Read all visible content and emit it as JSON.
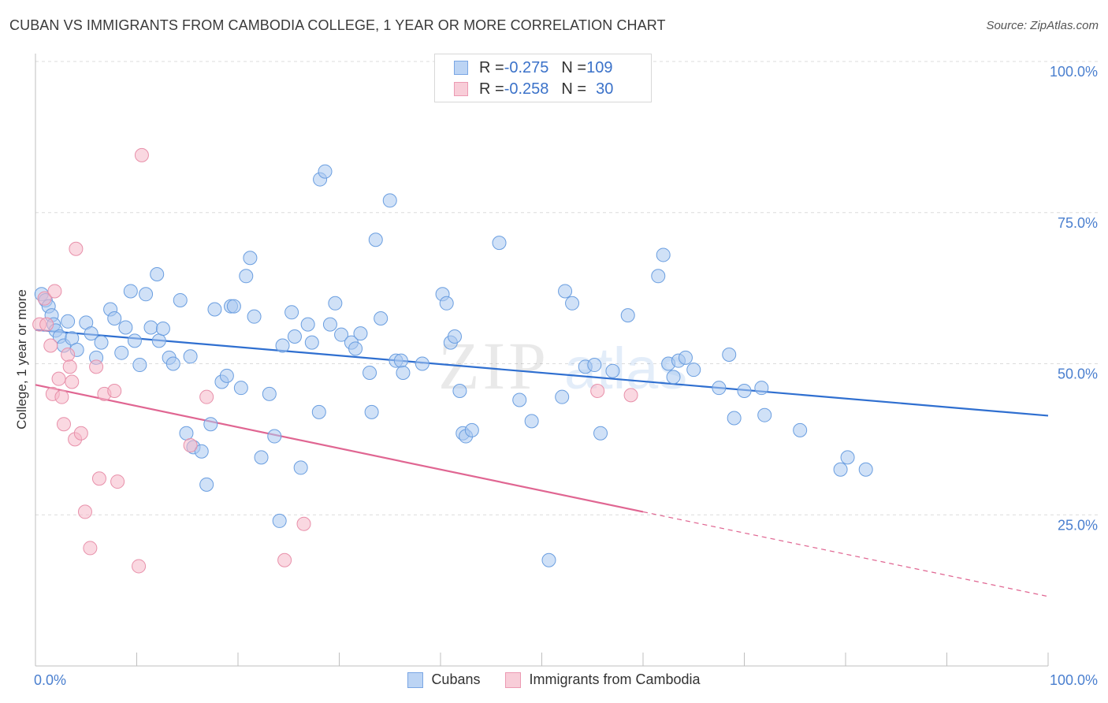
{
  "header": {
    "title": "CUBAN VS IMMIGRANTS FROM CAMBODIA COLLEGE, 1 YEAR OR MORE CORRELATION CHART",
    "source": "Source: ZipAtlas.com"
  },
  "watermark": {
    "main": "ZIP",
    "sub": "atlas"
  },
  "legend": {
    "rows": [
      {
        "r_label": "R = ",
        "r_value": "-0.275",
        "n_label": "N = ",
        "n_value": "109",
        "color": "#a9c8f0"
      },
      {
        "r_label": "R = ",
        "r_value": "-0.258",
        "n_label": "N = ",
        "n_value": "30",
        "color": "#f5b8c8"
      }
    ]
  },
  "bottom_legend": [
    {
      "label": "Cubans",
      "color": "#a9c8f0"
    },
    {
      "label": "Immigrants from Cambodia",
      "color": "#f5b8c8"
    }
  ],
  "chart_data": {
    "type": "scatter",
    "ylabel": "College, 1 year or more",
    "xlim": [
      0,
      100
    ],
    "ylim": [
      0,
      100
    ],
    "x_tick_labels": [
      "0.0%",
      "100.0%"
    ],
    "y_ticks": [
      25,
      50,
      75,
      100
    ],
    "y_tick_labels": [
      "25.0%",
      "50.0%",
      "75.0%",
      "100.0%"
    ],
    "grid": true,
    "series": [
      {
        "name": "Cubans",
        "color": "#a9c8f0",
        "stroke": "#6a9ee0",
        "trend": {
          "x": [
            0,
            100
          ],
          "y": [
            55.6,
            41.4
          ],
          "color": "#2f6fd0"
        },
        "points": [
          [
            0.6,
            61.5
          ],
          [
            1.0,
            60.5
          ],
          [
            1.3,
            59.5
          ],
          [
            1.6,
            58.0
          ],
          [
            1.8,
            56.5
          ],
          [
            2.0,
            55.5
          ],
          [
            2.4,
            54.5
          ],
          [
            2.8,
            53.0
          ],
          [
            3.2,
            57.0
          ],
          [
            3.6,
            54.2
          ],
          [
            4.1,
            52.3
          ],
          [
            5.0,
            56.8
          ],
          [
            5.5,
            55.0
          ],
          [
            6.0,
            51.0
          ],
          [
            6.5,
            53.5
          ],
          [
            7.4,
            59.0
          ],
          [
            7.8,
            57.5
          ],
          [
            8.5,
            51.8
          ],
          [
            8.9,
            56.0
          ],
          [
            9.4,
            62.0
          ],
          [
            9.8,
            53.8
          ],
          [
            10.3,
            49.8
          ],
          [
            10.9,
            61.5
          ],
          [
            11.4,
            56.0
          ],
          [
            12.0,
            64.8
          ],
          [
            12.2,
            53.8
          ],
          [
            12.6,
            55.8
          ],
          [
            13.2,
            51.0
          ],
          [
            13.6,
            50.0
          ],
          [
            14.3,
            60.5
          ],
          [
            14.9,
            38.5
          ],
          [
            15.3,
            51.2
          ],
          [
            15.6,
            36.2
          ],
          [
            16.4,
            35.5
          ],
          [
            16.9,
            30.0
          ],
          [
            17.3,
            40.0
          ],
          [
            17.7,
            59.0
          ],
          [
            18.4,
            47.0
          ],
          [
            18.9,
            48.0
          ],
          [
            19.3,
            59.5
          ],
          [
            19.6,
            59.5
          ],
          [
            20.3,
            46.0
          ],
          [
            20.8,
            64.5
          ],
          [
            21.2,
            67.5
          ],
          [
            21.6,
            57.8
          ],
          [
            22.3,
            34.5
          ],
          [
            23.1,
            45.0
          ],
          [
            23.6,
            38.0
          ],
          [
            24.1,
            24.0
          ],
          [
            24.4,
            53.0
          ],
          [
            25.3,
            58.5
          ],
          [
            25.6,
            54.5
          ],
          [
            26.2,
            32.8
          ],
          [
            26.9,
            56.5
          ],
          [
            27.3,
            53.5
          ],
          [
            28.0,
            42.0
          ],
          [
            28.1,
            80.5
          ],
          [
            28.6,
            81.8
          ],
          [
            29.1,
            56.5
          ],
          [
            29.6,
            60.0
          ],
          [
            30.2,
            54.8
          ],
          [
            31.2,
            53.5
          ],
          [
            31.6,
            52.5
          ],
          [
            32.1,
            55.0
          ],
          [
            33.0,
            48.5
          ],
          [
            33.2,
            42.0
          ],
          [
            33.6,
            70.5
          ],
          [
            34.1,
            57.5
          ],
          [
            35.0,
            77.0
          ],
          [
            35.6,
            50.5
          ],
          [
            36.1,
            50.5
          ],
          [
            36.3,
            48.5
          ],
          [
            38.2,
            50.0
          ],
          [
            40.2,
            61.5
          ],
          [
            40.6,
            60.0
          ],
          [
            41.0,
            53.5
          ],
          [
            41.4,
            54.5
          ],
          [
            41.9,
            45.5
          ],
          [
            42.2,
            38.5
          ],
          [
            42.5,
            38.0
          ],
          [
            43.1,
            39.0
          ],
          [
            45.8,
            70.0
          ],
          [
            47.8,
            44.0
          ],
          [
            49.0,
            40.5
          ],
          [
            50.7,
            17.5
          ],
          [
            52.0,
            44.5
          ],
          [
            52.3,
            62.0
          ],
          [
            53.0,
            60.0
          ],
          [
            54.3,
            49.5
          ],
          [
            55.2,
            49.8
          ],
          [
            55.8,
            38.5
          ],
          [
            57.0,
            48.8
          ],
          [
            58.5,
            58.0
          ],
          [
            61.5,
            64.5
          ],
          [
            62.0,
            68.0
          ],
          [
            62.5,
            50.0
          ],
          [
            63.0,
            47.8
          ],
          [
            63.5,
            50.5
          ],
          [
            64.2,
            51.0
          ],
          [
            65.0,
            49.0
          ],
          [
            67.5,
            46.0
          ],
          [
            68.5,
            51.5
          ],
          [
            69.0,
            41.0
          ],
          [
            70.0,
            45.5
          ],
          [
            71.7,
            46.0
          ],
          [
            72.0,
            41.5
          ],
          [
            75.5,
            39.0
          ],
          [
            79.5,
            32.5
          ],
          [
            80.2,
            34.5
          ],
          [
            82.0,
            32.5
          ]
        ]
      },
      {
        "name": "Immigrants from Cambodia",
        "color": "#f5b8c8",
        "stroke": "#e890aa",
        "trend": {
          "x": [
            0,
            60
          ],
          "y": [
            46.5,
            25.5
          ],
          "color": "#e06692",
          "dashed_to": [
            100,
            11.5
          ]
        },
        "points": [
          [
            0.4,
            56.5
          ],
          [
            0.9,
            60.8
          ],
          [
            1.1,
            56.5
          ],
          [
            1.5,
            53.0
          ],
          [
            1.7,
            45.0
          ],
          [
            1.9,
            62.0
          ],
          [
            2.3,
            47.5
          ],
          [
            2.6,
            44.5
          ],
          [
            2.8,
            40.0
          ],
          [
            3.2,
            51.5
          ],
          [
            3.4,
            49.5
          ],
          [
            3.6,
            47.0
          ],
          [
            3.9,
            37.5
          ],
          [
            4.0,
            69.0
          ],
          [
            4.5,
            38.5
          ],
          [
            4.9,
            25.5
          ],
          [
            5.4,
            19.5
          ],
          [
            6.0,
            49.5
          ],
          [
            6.3,
            31.0
          ],
          [
            6.8,
            45.0
          ],
          [
            7.8,
            45.5
          ],
          [
            8.1,
            30.5
          ],
          [
            10.2,
            16.5
          ],
          [
            10.5,
            84.5
          ],
          [
            15.3,
            36.5
          ],
          [
            16.9,
            44.5
          ],
          [
            24.6,
            17.5
          ],
          [
            26.5,
            23.5
          ],
          [
            55.5,
            45.5
          ],
          [
            58.8,
            44.8
          ]
        ]
      }
    ]
  }
}
